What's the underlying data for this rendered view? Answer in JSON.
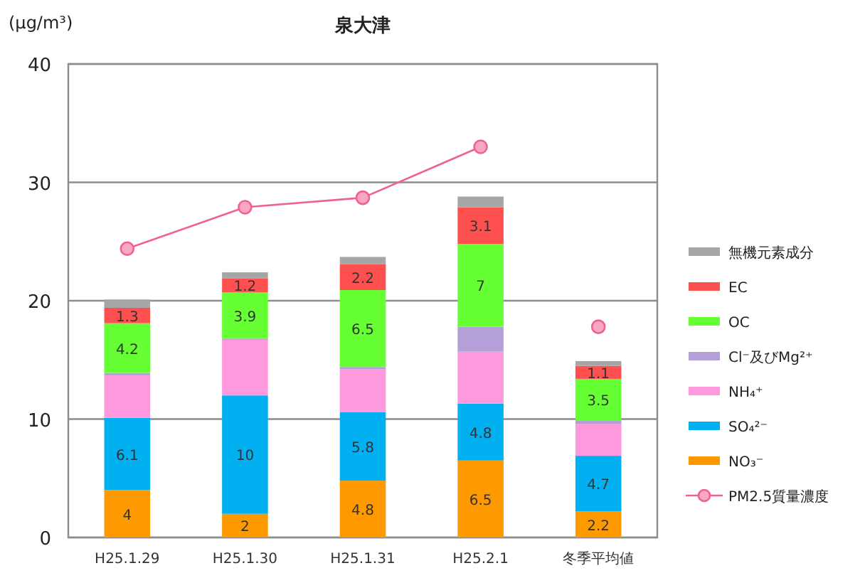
{
  "chart_data": {
    "type": "bar",
    "stacked": true,
    "title": "泉大津",
    "ylabel": "(µg/m³)",
    "categories": [
      "H25.1.29",
      "H25.1.30",
      "H25.1.31",
      "H25.2.1",
      "冬季平均値"
    ],
    "ylim": [
      0,
      40
    ],
    "yticks": [
      0,
      10,
      20,
      30,
      40
    ],
    "grid": "y",
    "legend": "right",
    "series": [
      {
        "name": "NO₃⁻",
        "color": "#ff9900",
        "values": [
          4,
          2,
          4.8,
          6.5,
          2.2
        ],
        "value_labels": [
          "4",
          "2",
          "4.8",
          "6.5",
          "2.2"
        ]
      },
      {
        "name": "SO₄²⁻",
        "color": "#00b0f0",
        "values": [
          6.1,
          10,
          5.8,
          4.8,
          4.7
        ],
        "value_labels": [
          "6.1",
          "10",
          "5.8",
          "4.8",
          "4.7"
        ]
      },
      {
        "name": "NH₄⁺",
        "color": "#ff99dd",
        "values": [
          3.6,
          4.7,
          3.6,
          4.4,
          2.7
        ]
      },
      {
        "name": "Cl⁻及びMg²⁺",
        "color": "#b4a0d8",
        "values": [
          0.2,
          0.1,
          0.2,
          2.1,
          0.3
        ]
      },
      {
        "name": "OC",
        "color": "#66ff33",
        "values": [
          4.2,
          3.9,
          6.5,
          7,
          3.5
        ],
        "value_labels": [
          "4.2",
          "3.9",
          "6.5",
          "7",
          "3.5"
        ]
      },
      {
        "name": "EC",
        "color": "#ff5050",
        "values": [
          1.3,
          1.2,
          2.2,
          3.1,
          1.1
        ],
        "value_labels": [
          "1.3",
          "1.2",
          "2.2",
          "3.1",
          "1.1"
        ]
      },
      {
        "name": "無機元素成分",
        "color": "#a6a6a6",
        "values": [
          0.7,
          0.5,
          0.6,
          0.9,
          0.4
        ]
      },
      {
        "name": "PM2.5質量濃度",
        "type": "line",
        "color": "#f06090",
        "marker": "circle",
        "values": [
          24.4,
          27.9,
          28.7,
          33.0,
          null
        ]
      },
      {
        "type": "scatter",
        "color": "#f06090",
        "marker": "circle",
        "values": [
          null,
          null,
          null,
          null,
          17.8
        ]
      }
    ]
  }
}
